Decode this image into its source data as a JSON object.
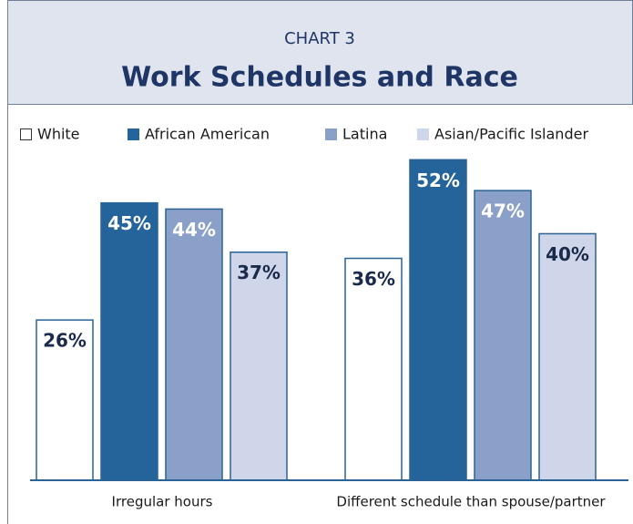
{
  "chart_data": {
    "type": "bar",
    "subtitle": "CHART 3",
    "title": "Work Schedules and Race",
    "categories": [
      "Irregular hours",
      "Different schedule than spouse/partner"
    ],
    "series": [
      {
        "name": "White",
        "color": "#ffffff",
        "values": [
          26,
          36
        ],
        "value_labels": [
          "26%",
          "36%"
        ]
      },
      {
        "name": "African American",
        "color": "#24649b",
        "values": [
          45,
          52
        ],
        "value_labels": [
          "45%",
          "52%"
        ]
      },
      {
        "name": "Latina",
        "color": "#8aa0c8",
        "values": [
          44,
          47
        ],
        "value_labels": [
          "44%",
          "47%"
        ]
      },
      {
        "name": "Asian/Pacific Islander",
        "color": "#d0d6e9",
        "values": [
          37,
          40
        ],
        "value_labels": [
          "37%",
          "40%"
        ]
      }
    ],
    "ylim": [
      0,
      55
    ]
  }
}
